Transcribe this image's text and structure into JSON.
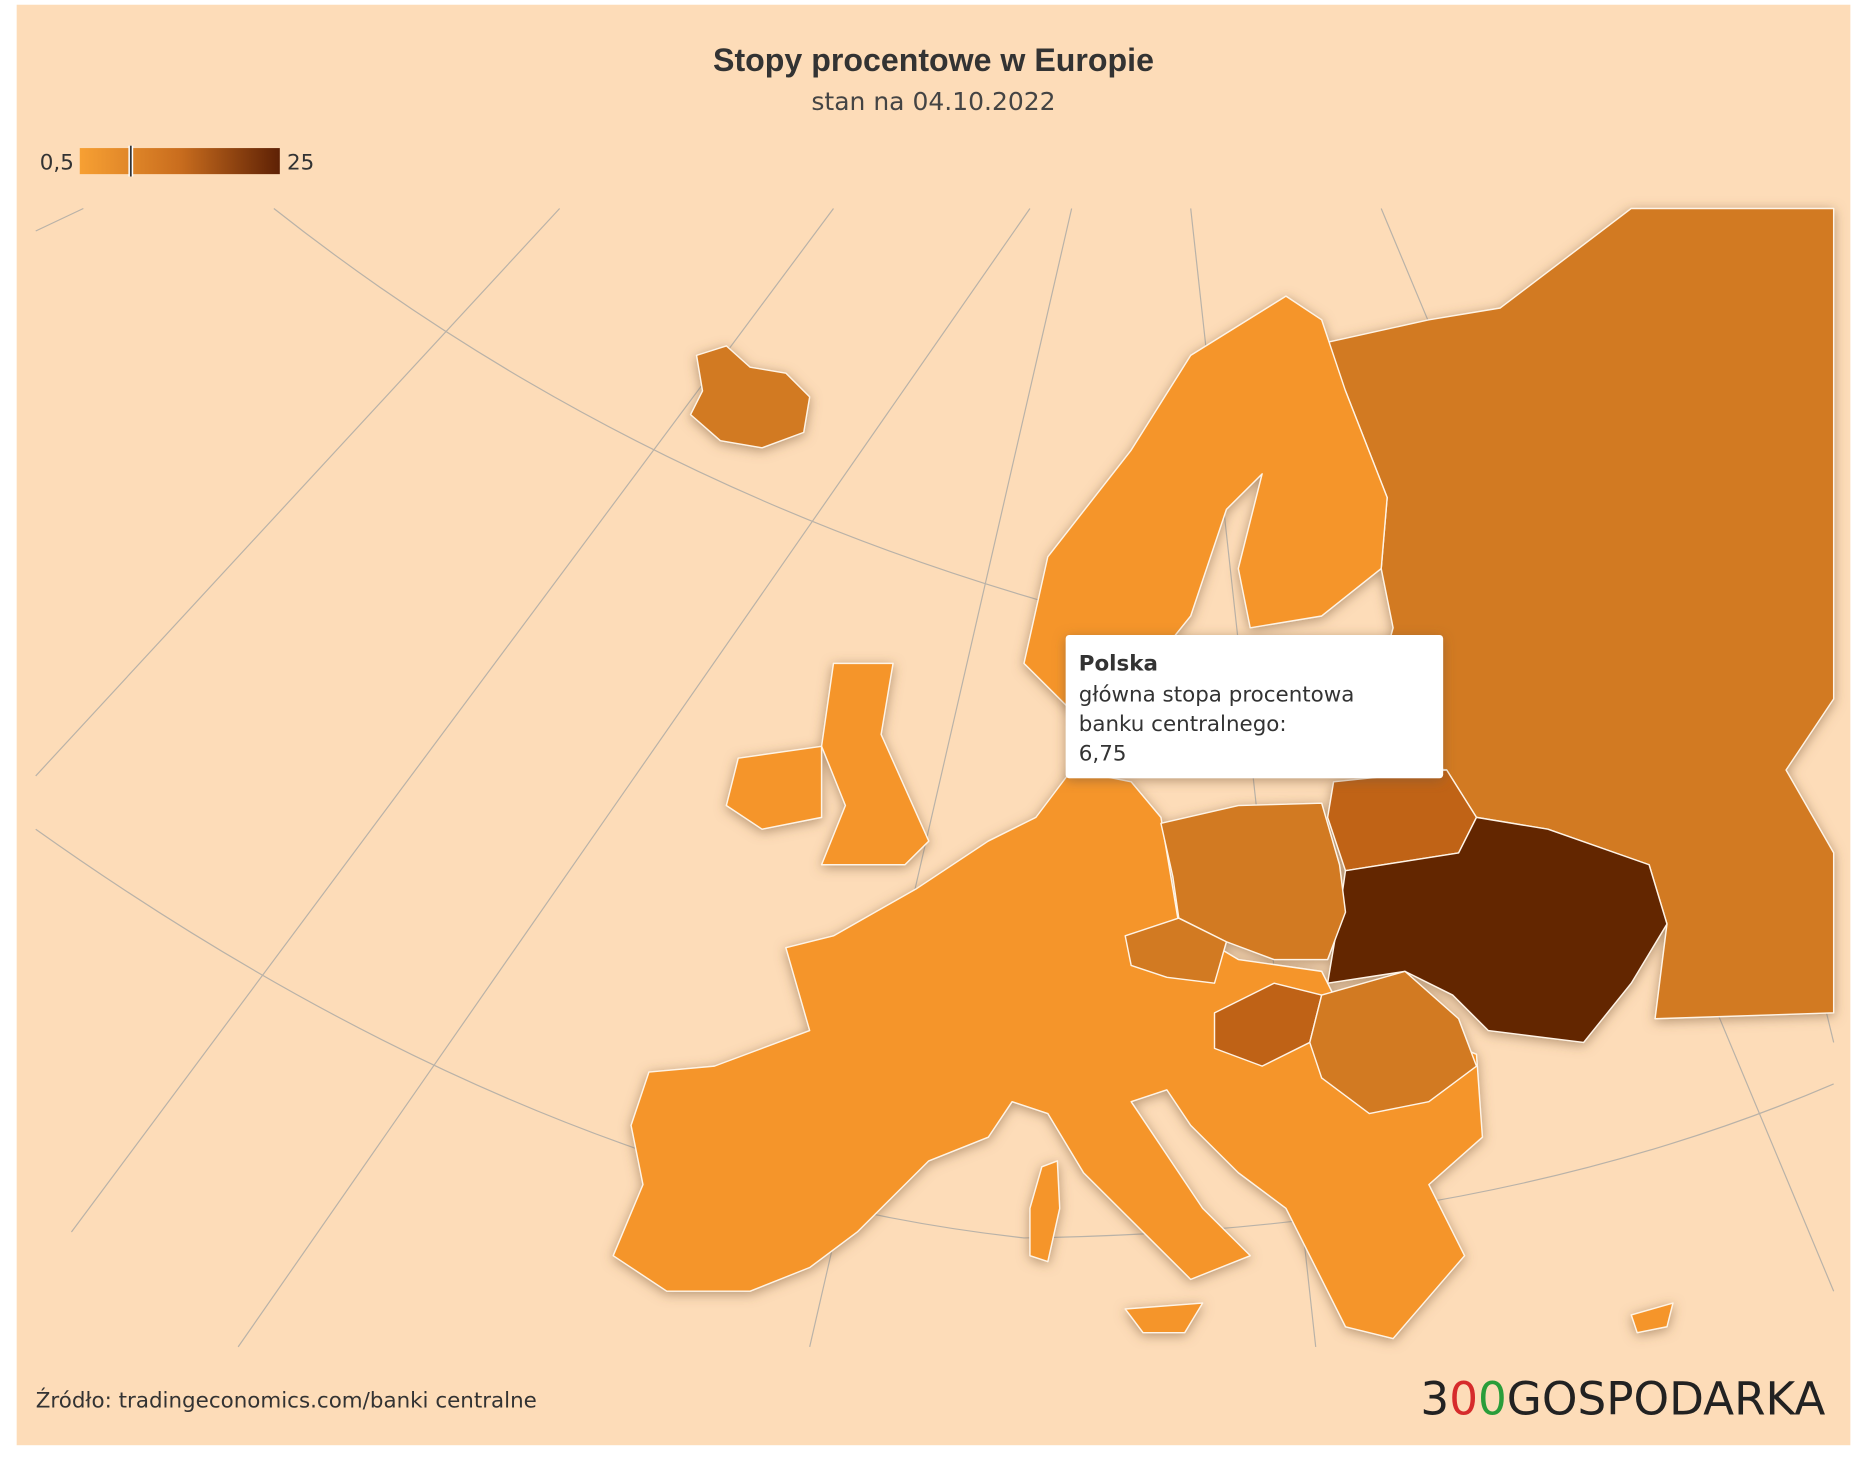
{
  "header": {
    "title": "Stopy procentowe w Europie",
    "subtitle": "stan na 04.10.2022"
  },
  "legend": {
    "min": {
      "value": 0.5,
      "label": "0,5"
    },
    "max": {
      "value": 25,
      "label": "25"
    }
  },
  "tooltip": {
    "country": "Polska",
    "description": [
      "główna stopa procentowa",
      "banku centralnego:"
    ],
    "value": {
      "value": 6.75,
      "label": "6,75"
    }
  },
  "footer": {
    "source": "Źródło: tradingeconomics.com/banki centralne",
    "logo": [
      "3",
      "0",
      "0",
      "GOSPODARKA"
    ]
  }
}
